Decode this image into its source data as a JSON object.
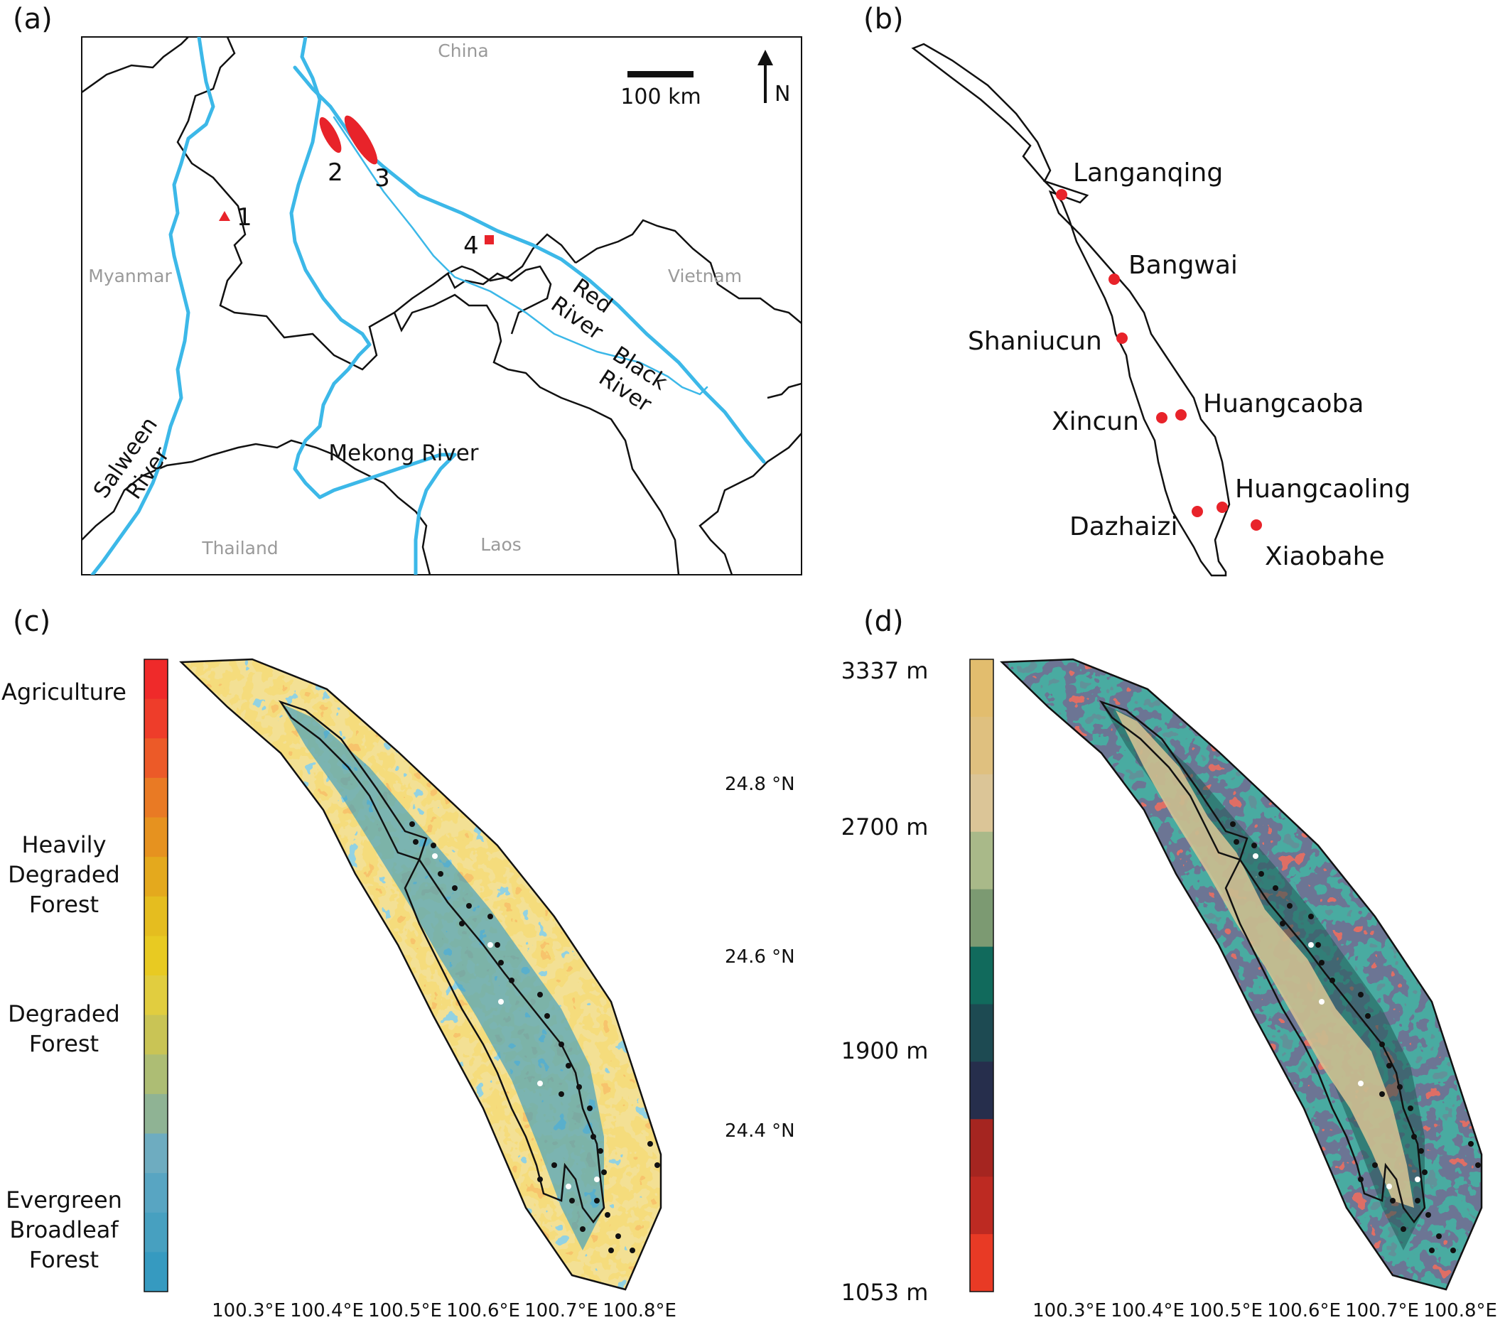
{
  "panels": {
    "a": {
      "label": "(a)",
      "countries": [
        "China",
        "Myanmar",
        "Vietnam",
        "Thailand",
        "Laos"
      ],
      "rivers": {
        "salween": [
          "Salween",
          "River"
        ],
        "mekong": "Mekong River",
        "red": [
          "Red",
          "River"
        ],
        "black": [
          "Black",
          "River"
        ]
      },
      "sites": [
        "1",
        "2",
        "3",
        "4"
      ],
      "scale_bar": "100 km",
      "north": "N",
      "colors": {
        "river": "#3cb8e8",
        "border": "#111111",
        "site": "#e8232a"
      }
    },
    "b": {
      "label": "(b)",
      "villages": [
        "Langanqing",
        "Bangwai",
        "Shaniucun",
        "Xincun",
        "Huangcaoba",
        "Huangcaoling",
        "Dazhaizi",
        "Xiaobahe"
      ]
    },
    "c": {
      "label": "(c)",
      "legend": {
        "agriculture": "Agriculture",
        "heavily": [
          "Heavily",
          "Degraded",
          "Forest"
        ],
        "degraded": [
          "Degraded",
          "Forest"
        ],
        "evergreen": [
          "Evergreen",
          "Broadleaf",
          "Forest"
        ]
      },
      "legend_colors": [
        "#ef2a2a",
        "#ee3d2a",
        "#ec5a28",
        "#e97a24",
        "#e6921f",
        "#e4a91d",
        "#e5bd1f",
        "#e8ca22",
        "#e1cd3f",
        "#c9c455",
        "#adbd74",
        "#8fb394",
        "#6eacc0",
        "#58a5c2",
        "#47a0c0",
        "#369ac0"
      ],
      "lat_ticks": [
        "24.8 °N",
        "24.6 °N",
        "24.4 °N"
      ],
      "lon_ticks": [
        "100.3°E",
        "100.4°E",
        "100.5°E",
        "100.6°E",
        "100.7°E",
        "100.8°E"
      ]
    },
    "d": {
      "label": "(d)",
      "elev_ticks": [
        "3337 m",
        "2700 m",
        "1900 m",
        "1053 m"
      ],
      "legend_colors": [
        "#e2bd6e",
        "#dfc07f",
        "#dbc597",
        "#a9b989",
        "#7c9a72",
        "#116a5c",
        "#1d4a52",
        "#262e4c",
        "#a52520",
        "#bd2a22",
        "#e83a25"
      ],
      "lon_ticks": [
        "100.3°E",
        "100.4°E",
        "100.5°E",
        "100.6°E",
        "100.7°E",
        "100.8°E"
      ]
    }
  }
}
